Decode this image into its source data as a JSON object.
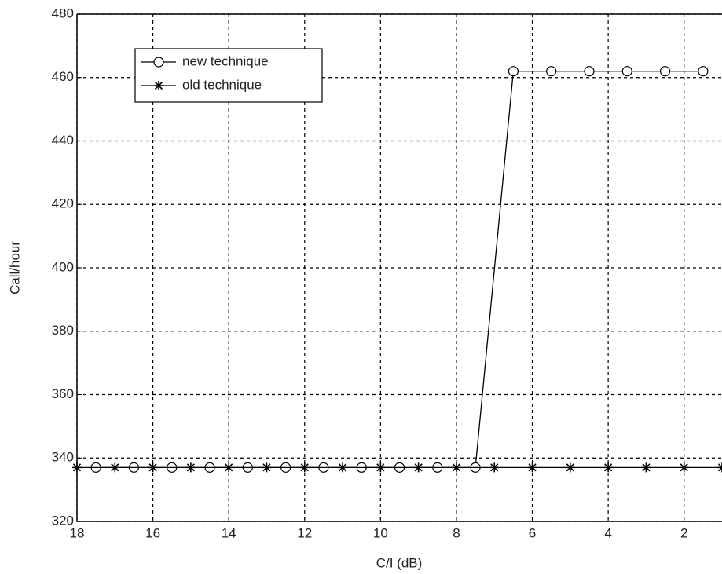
{
  "chart_data": {
    "type": "line",
    "xlabel": "C/I (dB)",
    "ylabel": "Call/hour",
    "xlim": [
      18,
      1
    ],
    "ylim": [
      320,
      480
    ],
    "xticks": [
      18,
      16,
      14,
      12,
      10,
      8,
      6,
      4,
      2
    ],
    "yticks": [
      320,
      340,
      360,
      380,
      400,
      420,
      440,
      460,
      480
    ],
    "grid": true,
    "legend": "upper left",
    "series": [
      {
        "name": "new technique",
        "color": "#000000",
        "marker": "o",
        "x": [
          17.5,
          16.5,
          15.5,
          14.5,
          13.5,
          12.5,
          11.5,
          10.5,
          9.5,
          8.5,
          7.5,
          6.5,
          5.5,
          4.5,
          3.5,
          2.5,
          1.5
        ],
        "values": [
          337,
          337,
          337,
          337,
          337,
          337,
          337,
          337,
          337,
          337,
          337,
          462,
          462,
          462,
          462,
          462,
          462
        ]
      },
      {
        "name": "old technique",
        "color": "#000000",
        "marker": "*",
        "x": [
          18,
          17,
          16,
          15,
          14,
          13,
          12,
          11,
          10,
          9,
          8,
          7,
          6,
          5,
          4,
          3,
          2,
          1
        ],
        "values": [
          337,
          337,
          337,
          337,
          337,
          337,
          337,
          337,
          337,
          337,
          337,
          337,
          337,
          337,
          337,
          337,
          337,
          337
        ]
      }
    ]
  }
}
